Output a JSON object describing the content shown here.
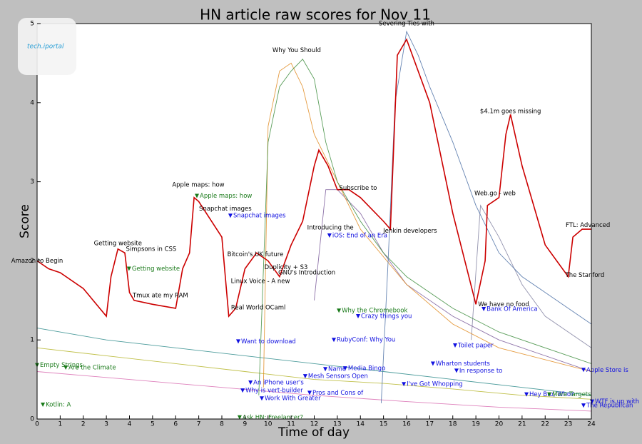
{
  "chart_data": {
    "type": "line",
    "title": "HN article raw scores for Nov 11",
    "xlabel": "Time of day",
    "ylabel": "Score",
    "watermark": "tech.iportal",
    "xlim": [
      0,
      24
    ],
    "ylim": [
      0,
      5
    ],
    "xticks": [
      0,
      1,
      2,
      3,
      4,
      5,
      6,
      7,
      8,
      9,
      10,
      11,
      12,
      13,
      14,
      15,
      16,
      17,
      18,
      19,
      20,
      21,
      22,
      23,
      24
    ],
    "yticks": [
      0,
      1,
      2,
      3,
      4,
      5
    ],
    "series": [
      {
        "color": "#2e8b8b",
        "x": [
          0,
          3,
          6,
          9,
          12,
          15,
          18,
          21,
          24
        ],
        "values": [
          1.15,
          1.0,
          0.9,
          0.8,
          0.7,
          0.6,
          0.5,
          0.4,
          0.3
        ]
      },
      {
        "color": "#b5b52a",
        "x": [
          0,
          3,
          6,
          9,
          12,
          15,
          18,
          21,
          24
        ],
        "values": [
          0.9,
          0.8,
          0.7,
          0.6,
          0.5,
          0.45,
          0.38,
          0.3,
          0.25
        ]
      },
      {
        "color": "#d86bb0",
        "x": [
          0,
          4,
          8,
          12,
          16,
          20,
          24
        ],
        "values": [
          0.6,
          0.5,
          0.4,
          0.3,
          0.22,
          0.15,
          0.1
        ]
      },
      {
        "color": "#8080a0",
        "x": [
          18.8,
          19.2,
          20,
          21,
          22,
          24
        ],
        "values": [
          1.0,
          2.7,
          2.3,
          1.7,
          1.3,
          0.9
        ]
      },
      {
        "color": "#7a5a9a",
        "x": [
          12,
          12.5,
          13,
          14,
          15,
          16,
          18,
          20,
          24
        ],
        "values": [
          1.5,
          2.9,
          2.9,
          2.6,
          2.1,
          1.7,
          1.3,
          1.0,
          0.6
        ]
      },
      {
        "color": "#e08a1e",
        "x": [
          9.8,
          10,
          10.5,
          11,
          11.5,
          12,
          13,
          14,
          16,
          18,
          20,
          24
        ],
        "values": [
          0.4,
          3.7,
          4.4,
          4.5,
          4.2,
          3.6,
          3.0,
          2.4,
          1.7,
          1.2,
          0.9,
          0.6
        ]
      },
      {
        "color": "#3c8c3c",
        "x": [
          9.6,
          10,
          10.5,
          11,
          11.5,
          12,
          12.5,
          13,
          14,
          15,
          16,
          18,
          20,
          22,
          24
        ],
        "values": [
          0.3,
          3.5,
          4.2,
          4.4,
          4.55,
          4.3,
          3.5,
          3.0,
          2.5,
          2.1,
          1.8,
          1.4,
          1.1,
          0.9,
          0.7
        ]
      },
      {
        "color": "#4a6fa5",
        "x": [
          14.9,
          15.2,
          15.5,
          16,
          16.5,
          17,
          18,
          19,
          20,
          21,
          22,
          23,
          24
        ],
        "values": [
          0.2,
          2.0,
          4.0,
          4.9,
          4.6,
          4.2,
          3.5,
          2.7,
          2.1,
          1.8,
          1.6,
          1.4,
          1.2
        ]
      },
      {
        "color": "#cc0000",
        "x": [
          0,
          0.5,
          1,
          2,
          3,
          3.2,
          3.5,
          3.8,
          4,
          4.2,
          5,
          6,
          6.3,
          6.6,
          6.8,
          7,
          8,
          8.3,
          8.6,
          9,
          9.5,
          10,
          10.5,
          11,
          11.5,
          12,
          12.2,
          12.6,
          13,
          13.5,
          14,
          15,
          15.3,
          15.6,
          16,
          17,
          18,
          19,
          19.4,
          19.5,
          20,
          20.3,
          20.5,
          21,
          22,
          22.5,
          23,
          23.2,
          23.6,
          24
        ],
        "values": [
          2.0,
          1.9,
          1.85,
          1.65,
          1.3,
          1.8,
          2.15,
          2.1,
          1.6,
          1.5,
          1.45,
          1.4,
          1.9,
          2.1,
          2.8,
          2.75,
          2.3,
          1.3,
          1.4,
          1.9,
          2.1,
          2.0,
          1.8,
          2.2,
          2.5,
          3.2,
          3.4,
          3.2,
          2.9,
          2.9,
          2.8,
          2.5,
          2.4,
          4.6,
          4.8,
          4.0,
          2.6,
          1.45,
          2.0,
          2.7,
          2.8,
          3.6,
          3.85,
          3.2,
          2.2,
          2.0,
          1.8,
          2.3,
          2.4,
          2.4
        ]
      }
    ],
    "annotations": [
      {
        "text": "Amazon to Begin",
        "x": 0,
        "y": 2.0,
        "color": "black"
      },
      {
        "text": "Getting website",
        "x": 3.5,
        "y": 2.22,
        "color": "black"
      },
      {
        "text": "Simpsons in CSS",
        "x": 4.94,
        "y": 2.15,
        "color": "black"
      },
      {
        "text": "Apple maps: how",
        "x": 6.98,
        "y": 2.96,
        "color": "black"
      },
      {
        "text": "Snapchat images",
        "x": 8.15,
        "y": 2.66,
        "color": "black"
      },
      {
        "text": "Bitcoin's UK future",
        "x": 9.45,
        "y": 2.08,
        "color": "black"
      },
      {
        "text": "Duplicity + S3",
        "x": 10.78,
        "y": 1.92,
        "color": "black"
      },
      {
        "text": "Linux Voice - A new",
        "x": 9.67,
        "y": 1.74,
        "color": "black"
      },
      {
        "text": "Tmux ate my RAM",
        "x": 5.34,
        "y": 1.56,
        "color": "black"
      },
      {
        "text": "Real World OCaml",
        "x": 9.58,
        "y": 1.41,
        "color": "black"
      },
      {
        "text": "Why You Should",
        "x": 11.24,
        "y": 4.66,
        "color": "black"
      },
      {
        "text": "Introducing the",
        "x": 12.7,
        "y": 2.42,
        "color": "black"
      },
      {
        "text": "GNU's Introduction",
        "x": 11.68,
        "y": 1.85,
        "color": "black"
      },
      {
        "text": "Subscribe to",
        "x": 13.9,
        "y": 2.92,
        "color": "black"
      },
      {
        "text": "Severing Ties with",
        "x": 16.0,
        "y": 5.0,
        "color": "black"
      },
      {
        "text": "Jenkin developers",
        "x": 16.15,
        "y": 2.38,
        "color": "black"
      },
      {
        "text": "$4.1m goes missing",
        "x": 20.5,
        "y": 3.89,
        "color": "black"
      },
      {
        "text": "Web.go - web",
        "x": 19.83,
        "y": 2.85,
        "color": "black"
      },
      {
        "text": "We have no food",
        "x": 20.2,
        "y": 1.45,
        "color": "black"
      },
      {
        "text": "FTL: Advanced",
        "x": 23.85,
        "y": 2.45,
        "color": "black"
      },
      {
        "text": "The Stanford",
        "x": 23.72,
        "y": 1.82,
        "color": "black"
      },
      {
        "text": "Apple maps: how",
        "x": 6.92,
        "y": 2.82,
        "color": "green",
        "marker": true
      },
      {
        "text": "Snapchat images",
        "x": 8.37,
        "y": 2.57,
        "color": "blue",
        "marker": true
      },
      {
        "text": "Getting website",
        "x": 3.98,
        "y": 1.9,
        "color": "green",
        "marker": true
      },
      {
        "text": "iOS: End of an Era",
        "x": 12.66,
        "y": 2.32,
        "color": "blue",
        "marker": true
      },
      {
        "text": "Why the Chromebook",
        "x": 13.07,
        "y": 1.37,
        "color": "green",
        "marker": true
      },
      {
        "text": "Crazy things you",
        "x": 13.9,
        "y": 1.3,
        "color": "blue",
        "marker": true
      },
      {
        "text": "Bank Of America",
        "x": 19.34,
        "y": 1.39,
        "color": "blue",
        "marker": true
      },
      {
        "text": "Want to download",
        "x": 8.71,
        "y": 0.98,
        "color": "blue",
        "marker": true
      },
      {
        "text": "RubyConf: Why You",
        "x": 12.85,
        "y": 1.0,
        "color": "blue",
        "marker": true
      },
      {
        "text": "Toilet paper",
        "x": 18.1,
        "y": 0.93,
        "color": "blue",
        "marker": true
      },
      {
        "text": "Wharton students",
        "x": 17.14,
        "y": 0.7,
        "color": "blue",
        "marker": true
      },
      {
        "text": "Empty Strings",
        "x": 0,
        "y": 0.68,
        "color": "green",
        "marker": true
      },
      {
        "text": "Are the Climate",
        "x": 1.24,
        "y": 0.65,
        "color": "green",
        "marker": true
      },
      {
        "text": "Name",
        "x": 12.48,
        "y": 0.63,
        "color": "blue",
        "marker": true
      },
      {
        "text": "Media Bingo",
        "x": 13.34,
        "y": 0.64,
        "color": "blue",
        "marker": true
      },
      {
        "text": "In response to",
        "x": 18.16,
        "y": 0.61,
        "color": "blue",
        "marker": true
      },
      {
        "text": "Apple Store is",
        "x": 23.66,
        "y": 0.62,
        "color": "blue",
        "marker": true
      },
      {
        "text": "An iPhone user's",
        "x": 9.24,
        "y": 0.46,
        "color": "blue",
        "marker": true
      },
      {
        "text": "Mesh Sensors Open",
        "x": 11.61,
        "y": 0.54,
        "color": "blue",
        "marker": true
      },
      {
        "text": "I've Got Whopping",
        "x": 15.88,
        "y": 0.44,
        "color": "blue",
        "marker": true
      },
      {
        "text": "Why is vert-builder",
        "x": 8.9,
        "y": 0.36,
        "color": "blue",
        "marker": true
      },
      {
        "text": "Pros and Cons of",
        "x": 11.8,
        "y": 0.33,
        "color": "blue",
        "marker": true
      },
      {
        "text": "Work With Greater",
        "x": 9.73,
        "y": 0.26,
        "color": "blue",
        "marker": true
      },
      {
        "text": "Hey Bro, Who?",
        "x": 21.19,
        "y": 0.31,
        "color": "blue",
        "marker": true
      },
      {
        "text": "More Targets",
        "x": 22.18,
        "y": 0.31,
        "color": "green",
        "marker": true
      },
      {
        "text": "WTF is up with",
        "x": 24.03,
        "y": 0.22,
        "color": "blue",
        "marker": true
      },
      {
        "text": "The Republican",
        "x": 23.66,
        "y": 0.17,
        "color": "blue",
        "marker": true
      },
      {
        "text": "Kotlin: A",
        "x": 0.25,
        "y": 0.18,
        "color": "green",
        "marker": true
      },
      {
        "text": "Ask HN: Freelancer?",
        "x": 8.77,
        "y": 0.02,
        "color": "green",
        "marker": true
      }
    ]
  }
}
